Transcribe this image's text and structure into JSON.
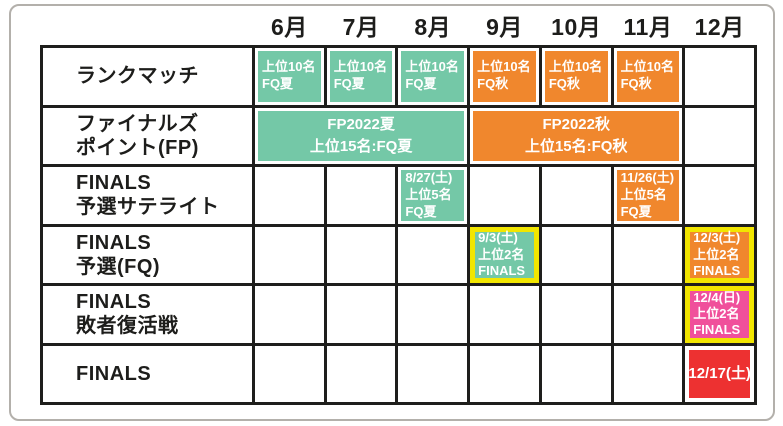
{
  "colors": {
    "teal": "#74c8a7",
    "orange": "#f0872d",
    "yellow": "#f2e600",
    "pink": "#f0509b",
    "red": "#ed3131",
    "grid": "#1e1e1c",
    "text_dark": "#1d1d1b",
    "text_light": "#ffffff",
    "frame_gray": "#b3b0ab"
  },
  "header": {
    "months": [
      "6月",
      "7月",
      "8月",
      "9月",
      "10月",
      "11月",
      "12月"
    ]
  },
  "table": {
    "rows": [
      {
        "label_lines": [
          "ランクマッチ"
        ],
        "blocks": [
          {
            "col": 0,
            "span": 1,
            "color": "teal",
            "style": "plain",
            "lines": [
              "上位10名",
              "FQ夏"
            ]
          },
          {
            "col": 1,
            "span": 1,
            "color": "teal",
            "style": "plain",
            "lines": [
              "上位10名",
              "FQ夏"
            ]
          },
          {
            "col": 2,
            "span": 1,
            "color": "teal",
            "style": "plain",
            "lines": [
              "上位10名",
              "FQ夏"
            ]
          },
          {
            "col": 3,
            "span": 1,
            "color": "orange",
            "style": "plain",
            "lines": [
              "上位10名",
              "FQ秋"
            ]
          },
          {
            "col": 4,
            "span": 1,
            "color": "orange",
            "style": "plain",
            "lines": [
              "上位10名",
              "FQ秋"
            ]
          },
          {
            "col": 5,
            "span": 1,
            "color": "orange",
            "style": "plain",
            "lines": [
              "上位10名",
              "FQ秋"
            ]
          }
        ]
      },
      {
        "label_lines": [
          "ファイナルズ",
          "ポイント(FP)"
        ],
        "blocks": [
          {
            "col": 0,
            "span": 3,
            "color": "teal",
            "style": "merged",
            "lines": [
              "FP2022夏",
              "上位15名:FQ夏"
            ]
          },
          {
            "col": 3,
            "span": 3,
            "color": "orange",
            "style": "merged",
            "lines": [
              "FP2022秋",
              "上位15名:FQ秋"
            ]
          }
        ]
      },
      {
        "label_lines": [
          "FINALS",
          "予選サテライト"
        ],
        "blocks": [
          {
            "col": 2,
            "span": 1,
            "color": "teal",
            "style": "plain",
            "lines": [
              "8/27(土)",
              "上位5名",
              "FQ夏"
            ]
          },
          {
            "col": 5,
            "span": 1,
            "color": "orange",
            "style": "plain",
            "lines": [
              "11/26(土)",
              "上位5名",
              "FQ夏"
            ]
          }
        ]
      },
      {
        "label_lines": [
          "FINALS",
          "予選(FQ)"
        ],
        "blocks": [
          {
            "col": 3,
            "span": 1,
            "color": "teal",
            "style": "framed",
            "lines": [
              "9/3(土)",
              "上位2名",
              "FINALS"
            ]
          },
          {
            "col": 6,
            "span": 1,
            "color": "orange",
            "style": "framed",
            "lines": [
              "12/3(土)",
              "上位2名",
              "FINALS"
            ]
          }
        ]
      },
      {
        "label_lines": [
          "FINALS",
          "敗者復活戦"
        ],
        "blocks": [
          {
            "col": 6,
            "span": 1,
            "color": "pink",
            "style": "framed",
            "lines": [
              "12/4(日)",
              "上位2名",
              "FINALS"
            ]
          }
        ]
      },
      {
        "label_lines": [
          "FINALS"
        ],
        "blocks": [
          {
            "col": 6,
            "span": 1,
            "color": "red",
            "style": "badge",
            "lines": [
              "12/17(土)"
            ]
          }
        ]
      }
    ]
  }
}
